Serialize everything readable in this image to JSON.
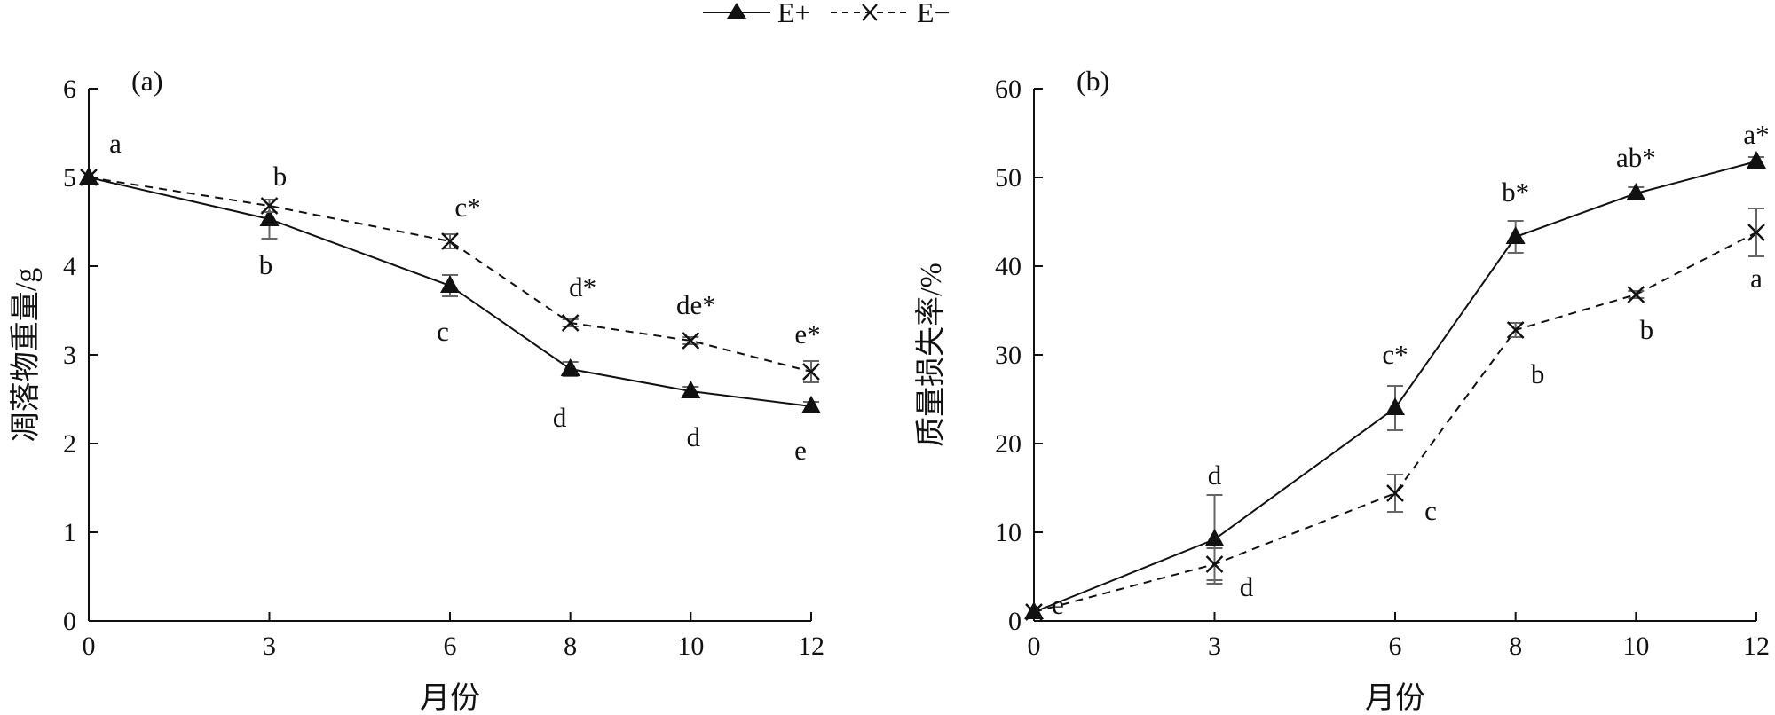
{
  "legend": {
    "items": [
      {
        "label": "E+",
        "marker": "triangle",
        "line": "solid"
      },
      {
        "label": "E−",
        "marker": "x",
        "line": "dashed"
      }
    ]
  },
  "chart_data": [
    {
      "type": "line",
      "panel_label": "(a)",
      "xlabel": "月份",
      "ylabel": "凋落物重量/g",
      "x": [
        0,
        3,
        6,
        8,
        10,
        12
      ],
      "xlim": [
        0,
        12
      ],
      "ylim": [
        0,
        6
      ],
      "yticks": [
        0,
        1,
        2,
        3,
        4,
        5,
        6
      ],
      "grid": false,
      "legend_position": "top-center",
      "series": [
        {
          "name": "E+",
          "values": [
            5.0,
            4.53,
            3.78,
            2.84,
            2.59,
            2.42
          ],
          "errors": [
            0.0,
            0.22,
            0.12,
            0.08,
            0.05,
            0.05
          ],
          "labels": [
            "",
            "b",
            "c",
            "d",
            "d",
            "e"
          ]
        },
        {
          "name": "E−",
          "values": [
            5.0,
            4.68,
            4.28,
            3.36,
            3.16,
            2.81
          ],
          "errors": [
            0.0,
            0.07,
            0.08,
            0.04,
            0.04,
            0.12
          ],
          "labels": [
            "a",
            "b",
            "c*",
            "d*",
            "de*",
            "e*"
          ]
        }
      ]
    },
    {
      "type": "line",
      "panel_label": "(b)",
      "xlabel": "月份",
      "ylabel": "质量损失率/%",
      "x": [
        0,
        3,
        6,
        8,
        10,
        12
      ],
      "xlim": [
        0,
        12
      ],
      "ylim": [
        0,
        60
      ],
      "yticks": [
        0,
        10,
        20,
        30,
        40,
        50,
        60
      ],
      "grid": false,
      "series": [
        {
          "name": "E+",
          "values": [
            1.0,
            9.2,
            24.0,
            43.3,
            48.2,
            51.8
          ],
          "errors": [
            0.0,
            5.0,
            2.5,
            1.8,
            0.7,
            0.5
          ],
          "labels": [
            "",
            "d",
            "c*",
            "b*",
            "ab*",
            "a*"
          ]
        },
        {
          "name": "E−",
          "values": [
            1.0,
            6.4,
            14.4,
            32.8,
            36.8,
            43.8
          ],
          "errors": [
            0.0,
            1.8,
            2.1,
            0.8,
            0.4,
            2.7
          ],
          "labels": [
            "e",
            "d",
            "c",
            "b",
            "b",
            "a"
          ]
        }
      ]
    }
  ]
}
